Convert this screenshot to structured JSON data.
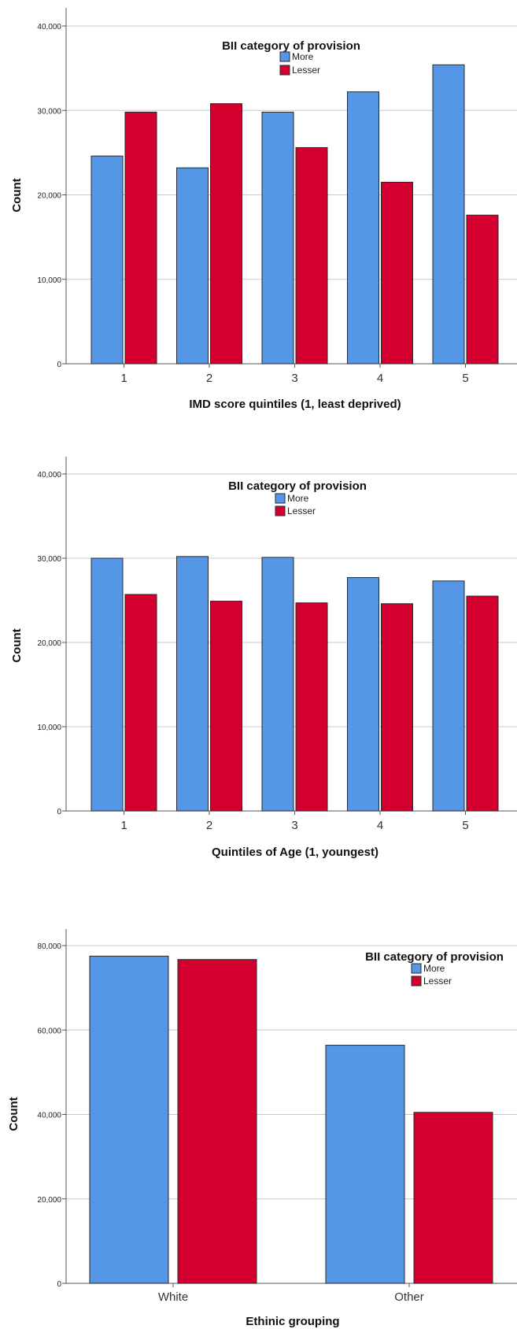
{
  "chart_data": [
    {
      "type": "bar",
      "ylabel": "Count",
      "xlabel": "IMD score quintiles (1, least deprived)",
      "ylim": [
        0,
        40000
      ],
      "yticks": [
        "0",
        "10,000",
        "20,000",
        "30,000",
        "40,000"
      ],
      "grid": true,
      "categories": [
        "1",
        "2",
        "3",
        "4",
        "5"
      ],
      "series": [
        {
          "name": "More",
          "color": "#5596e6",
          "values": [
            24600,
            23200,
            29800,
            32200,
            35400
          ]
        },
        {
          "name": "Lesser",
          "color": "#d3002f",
          "values": [
            29800,
            30800,
            25600,
            21500,
            17600
          ]
        }
      ],
      "legend": {
        "title": "BII category of provision",
        "placement": "top-center"
      }
    },
    {
      "type": "bar",
      "ylabel": "Count",
      "xlabel": "Quintiles of Age (1, youngest)",
      "ylim": [
        0,
        40000
      ],
      "yticks": [
        "0",
        "10,000",
        "20,000",
        "30,000",
        "40,000"
      ],
      "grid": true,
      "categories": [
        "1",
        "2",
        "3",
        "4",
        "5"
      ],
      "series": [
        {
          "name": "More",
          "color": "#5596e6",
          "values": [
            30000,
            30200,
            30100,
            27700,
            27300
          ]
        },
        {
          "name": "Lesser",
          "color": "#d3002f",
          "values": [
            25700,
            24900,
            24700,
            24600,
            25500
          ]
        }
      ],
      "legend": {
        "title": "BII category of provision",
        "placement": "top-center"
      }
    },
    {
      "type": "bar",
      "ylabel": "Count",
      "xlabel": "Ethinic grouping",
      "ylim": [
        0,
        80000
      ],
      "yticks": [
        "0",
        "20,000",
        "40,000",
        "60,000",
        "80,000"
      ],
      "grid": true,
      "categories": [
        "White",
        "Other"
      ],
      "series": [
        {
          "name": "More",
          "color": "#5596e6",
          "values": [
            77500,
            56400
          ]
        },
        {
          "name": "Lesser",
          "color": "#d3002f",
          "values": [
            76700,
            40500
          ]
        }
      ],
      "legend": {
        "title": "BII category of provision",
        "placement": "top-right"
      }
    }
  ]
}
